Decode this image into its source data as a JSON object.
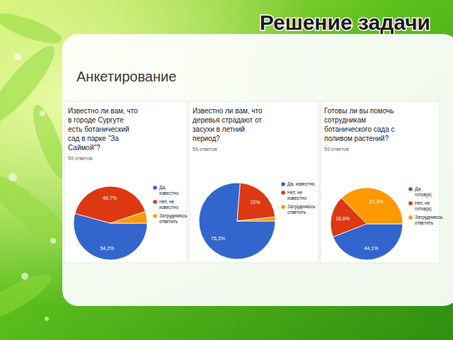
{
  "slide": {
    "title": "Решение задачи",
    "subtitle": "Анкетирование"
  },
  "chart_data": [
    {
      "type": "pie",
      "title": "Известно ли вам, что в городе Сургуте есть ботанический сад в парке \"За Саймой\"?",
      "subtitle": "59 ответов",
      "categories": [
        "Да, известно",
        "Нет, не известно",
        "Затрудняюсь ответить"
      ],
      "values": [
        54.2,
        40.7,
        5.1
      ],
      "value_labels": [
        "54,2%",
        "40,7%",
        null
      ],
      "colors": [
        "#3366cc",
        "#dc3912",
        "#ff9900"
      ],
      "data_labels": true,
      "legend": "right"
    },
    {
      "type": "pie",
      "title": "Известно ли вам, что деревья страдают от засухи в летний период?",
      "subtitle": "59 ответов",
      "categories": [
        "Да, известно",
        "Нет, не известно",
        "Затрудняюсь ответить"
      ],
      "values": [
        76.3,
        22,
        1.7
      ],
      "value_labels": [
        "76,3%",
        "22%",
        null
      ],
      "colors": [
        "#3366cc",
        "#dc3912",
        "#ff9900"
      ],
      "data_labels": true,
      "legend": "right"
    },
    {
      "type": "pie",
      "title": "Готовы ли вы помочь сотрудникам ботанического сада с поливом растений?",
      "subtitle": "59 ответов",
      "categories": [
        "Да, готов(а)",
        "Нет, не готов(а)",
        "Затрудняюсь ответить"
      ],
      "values": [
        44.1,
        18.6,
        37.3
      ],
      "value_labels": [
        "44,1%",
        "18,6%",
        "37,3%"
      ],
      "colors": [
        "#3366cc",
        "#dc3912",
        "#ff9900"
      ],
      "data_labels": true,
      "legend": "right"
    }
  ]
}
